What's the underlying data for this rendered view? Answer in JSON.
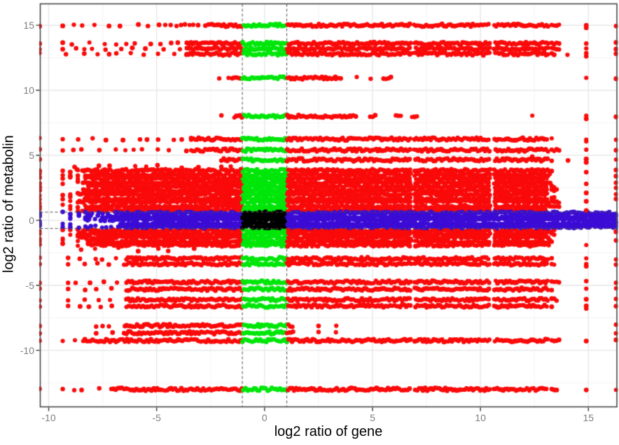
{
  "chart_data": {
    "type": "scatter",
    "title": "",
    "xlabel": "log2 ratio of gene",
    "ylabel": "log2 ratio of metabolin",
    "xlim": [
      -10.39,
      16.32
    ],
    "ylim": [
      -14.35,
      16.65
    ],
    "xticks": [
      -10,
      -5,
      0,
      5,
      10,
      15
    ],
    "yticks": [
      -10,
      -5,
      0,
      5,
      10,
      15
    ],
    "xticks_minor": [
      -7.5,
      -2.5,
      2.5,
      7.5,
      12.5
    ],
    "yticks_minor": [
      -12.5,
      -7.5,
      -2.5,
      2.5,
      7.5,
      12.5
    ],
    "grid": {
      "major": true,
      "minor": true,
      "legend": "none"
    },
    "threshold_lines": {
      "vertical_x": [
        -1.03,
        1.03
      ],
      "horizontal_y": [
        -0.63,
        0.63
      ],
      "style": "dashed"
    },
    "point_classes": {
      "rule": "black if |x|<=1 and |y|<=0.6; green if |x|<=1; blue if |y|<=0.6; else red",
      "x_threshold": 1.03,
      "y_threshold": 0.63
    },
    "colors": {
      "red": "#fa0a0a",
      "green": "#00e60a",
      "blue": "#3c0cd6",
      "black": "#000000",
      "dashed_line": "#4d4d4d",
      "panel_border": "#4a4a4a",
      "tick_mark": "#333333",
      "tick_label": "#7f7f7f",
      "grid_major": "#e6e6e6",
      "grid_minor": "#f3f3f3",
      "background": "#ffffff"
    },
    "point_radius_px": 3.1,
    "bands": [
      {
        "y": 15.0,
        "segments": [
          [
            -9.35,
            -4.6,
            "sparse"
          ],
          [
            -4.6,
            -2.6,
            "mid"
          ],
          [
            -2.6,
            13.15,
            "solid"
          ],
          [
            13.3,
            14.1,
            "chunks"
          ]
        ]
      },
      {
        "y": 13.6,
        "segments": [
          [
            -9.35,
            -3.6,
            "sparse"
          ],
          [
            -3.6,
            13.15,
            "solid"
          ],
          [
            13.3,
            14.1,
            "chunks"
          ]
        ]
      },
      {
        "y": 13.2,
        "segments": [
          [
            -9.35,
            -3.6,
            "sparse"
          ],
          [
            -3.6,
            13.15,
            "solid"
          ],
          [
            13.3,
            14.1,
            "chunks"
          ]
        ]
      },
      {
        "y": 12.8,
        "segments": [
          [
            -9.2,
            -3.6,
            "sparse"
          ],
          [
            -3.6,
            13.15,
            "solid"
          ],
          [
            13.3,
            14.1,
            "chunks"
          ]
        ]
      },
      {
        "y": 10.95,
        "narrow": true,
        "segments": [
          [
            -2.1,
            -1.5,
            "sparse"
          ],
          [
            -1.5,
            3.3,
            "solid"
          ],
          [
            3.3,
            6.3,
            "chunks"
          ]
        ]
      },
      {
        "y": 8.0,
        "narrow": true,
        "segments": [
          [
            -2.0,
            -1.4,
            "sparse"
          ],
          [
            -1.4,
            4.0,
            "solid"
          ],
          [
            4.0,
            7.1,
            "chunks"
          ]
        ]
      },
      {
        "y": 6.25,
        "segments": [
          [
            -9.35,
            -3.4,
            "sparse"
          ],
          [
            -3.4,
            13.15,
            "solid"
          ],
          [
            13.3,
            14.1,
            "chunks"
          ]
        ]
      },
      {
        "y": 5.4,
        "segments": [
          [
            -9.35,
            -3.4,
            "sparse"
          ],
          [
            -3.4,
            13.15,
            "solid"
          ],
          [
            13.3,
            14.1,
            "chunks"
          ]
        ]
      },
      {
        "y": 4.65,
        "segments": [
          [
            -2.0,
            13.15,
            "solid"
          ],
          [
            13.3,
            14.1,
            "chunks"
          ]
        ]
      },
      {
        "y": 3.87,
        "segments": [
          [
            -9.35,
            -8.3,
            "sparse"
          ]
        ]
      },
      {
        "y": -2.95,
        "segments": [
          [
            -9.1,
            -6.4,
            "sparse"
          ],
          [
            -6.4,
            13.15,
            "solid"
          ],
          [
            13.3,
            13.9,
            "chunks"
          ]
        ]
      },
      {
        "y": -3.35,
        "segments": [
          [
            -9.1,
            -6.4,
            "sparse"
          ],
          [
            -6.4,
            13.15,
            "solid"
          ],
          [
            13.3,
            13.9,
            "chunks"
          ]
        ]
      },
      {
        "y": -4.75,
        "segments": [
          [
            -9.1,
            -6.4,
            "sparse"
          ],
          [
            -6.4,
            13.15,
            "solid"
          ],
          [
            13.3,
            13.9,
            "chunks"
          ]
        ]
      },
      {
        "y": -5.3,
        "segments": [
          [
            -9.1,
            -6.4,
            "sparse"
          ],
          [
            -6.4,
            13.15,
            "solid"
          ],
          [
            13.3,
            13.9,
            "chunks"
          ]
        ]
      },
      {
        "y": -6.1,
        "segments": [
          [
            -9.1,
            -6.4,
            "sparse"
          ],
          [
            -6.4,
            13.15,
            "solid"
          ],
          [
            13.3,
            13.9,
            "chunks"
          ]
        ]
      },
      {
        "y": -6.6,
        "segments": [
          [
            -9.1,
            -6.4,
            "sparse"
          ],
          [
            -6.4,
            13.15,
            "solid"
          ],
          [
            13.3,
            13.9,
            "chunks"
          ]
        ]
      },
      {
        "y": -8.1,
        "segments": [
          [
            -7.8,
            -6.4,
            "sparse"
          ],
          [
            -6.4,
            1.35,
            "solid"
          ],
          [
            2.5,
            3.4,
            "sparse"
          ]
        ]
      },
      {
        "y": -8.65,
        "segments": [
          [
            -7.8,
            -6.4,
            "sparse"
          ],
          [
            -6.4,
            1.35,
            "solid"
          ],
          [
            2.5,
            3.4,
            "sparse"
          ]
        ]
      },
      {
        "y": -9.25,
        "segments": [
          [
            -9.35,
            -8.4,
            "sparse"
          ],
          [
            -8.4,
            13.15,
            "solid"
          ],
          [
            13.3,
            13.9,
            "chunks"
          ]
        ]
      },
      {
        "y": -13.0,
        "segments": [
          [
            -9.35,
            -7.1,
            "sparse"
          ],
          [
            -7.1,
            13.15,
            "solid"
          ],
          [
            13.3,
            13.9,
            "chunks"
          ]
        ]
      }
    ],
    "blocks": [
      {
        "name": "dense-upper",
        "y_top": 3.8,
        "y_bot": 0.66,
        "row_step": 0.3,
        "x_left": -8.35,
        "x_right": 13.15,
        "left_cols": [
          -9.35,
          -9.0,
          -8.65
        ],
        "chunk_to": 14.1,
        "speckle": "top"
      },
      {
        "name": "dense-lower",
        "y_top": -0.78,
        "y_bot": -1.92,
        "row_step": 0.28,
        "x_left": -8.35,
        "x_right": 13.15,
        "left_cols": [
          -9.35,
          -9.0,
          -8.65
        ],
        "chunk_to": 13.9,
        "speckle": "bottom"
      },
      {
        "name": "blue-row",
        "y_top": 0.55,
        "y_bot": -0.55,
        "row_step": 0.26,
        "x_left": -6.9,
        "x_right": 16.32,
        "left_cols": [
          -9.35,
          -9.0,
          -8.6,
          -8.2
        ],
        "sparse_left": -8.3
      }
    ],
    "columns": {
      "left_edge_x": -10.42,
      "right_isolated_x": 14.9,
      "right_edge_x": 16.28
    },
    "extra_points": [
      [
        12.4,
        8.05
      ],
      [
        12.4,
        4.9
      ]
    ],
    "white_gaps_x": [
      [
        10.45,
        10.62
      ],
      [
        6.8,
        6.92
      ]
    ]
  }
}
